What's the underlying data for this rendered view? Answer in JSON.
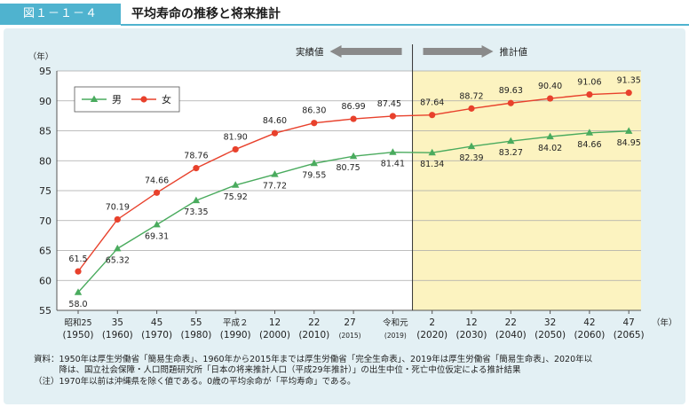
{
  "header": {
    "figure_label": "図１－１－４",
    "title": "平均寿命の推移と将来推計"
  },
  "chart_data": {
    "type": "line",
    "y_unit": "（年）",
    "x_unit": "（年）",
    "ylim": [
      55,
      95
    ],
    "yticks": [
      55,
      60,
      65,
      70,
      75,
      80,
      85,
      90,
      95
    ],
    "section_labels": {
      "actual": "実績値",
      "projected": "推計値"
    },
    "projection_start_index": 9,
    "projection_fill": "#fcf3c0",
    "x_ticks": [
      {
        "era": "昭和25",
        "year": "(1950)"
      },
      {
        "era": "35",
        "year": "(1960)"
      },
      {
        "era": "45",
        "year": "(1970)"
      },
      {
        "era": "55",
        "year": "(1980)"
      },
      {
        "era": "平成２",
        "year": "(1990)"
      },
      {
        "era": "12",
        "year": "(2000)"
      },
      {
        "era": "22",
        "year": "(2010)"
      },
      {
        "era": "27",
        "year": "(2015)"
      },
      {
        "era": "令和元",
        "year": "(2019)"
      },
      {
        "era": "2",
        "year": "(2020)"
      },
      {
        "era": "12",
        "year": "(2030)"
      },
      {
        "era": "22",
        "year": "(2040)"
      },
      {
        "era": "32",
        "year": "(2050)"
      },
      {
        "era": "42",
        "year": "(2060)"
      },
      {
        "era": "47",
        "year": "(2065)"
      }
    ],
    "x": [
      1950,
      1960,
      1970,
      1980,
      1990,
      2000,
      2010,
      2015,
      2019,
      2020,
      2030,
      2040,
      2050,
      2060,
      2065
    ],
    "series": [
      {
        "name": "男",
        "color": "#4aab5e",
        "marker": "triangle",
        "values": [
          58.0,
          65.32,
          69.31,
          73.35,
          75.92,
          77.72,
          79.55,
          80.75,
          81.41,
          81.34,
          82.39,
          83.27,
          84.02,
          84.66,
          84.95
        ],
        "labels": [
          "58.0",
          "65.32",
          "69.31",
          "73.35",
          "75.92",
          "77.72",
          "79.55",
          "80.75",
          "81.41",
          "81.34",
          "82.39",
          "83.27",
          "84.02",
          "84.66",
          "84.95"
        ]
      },
      {
        "name": "女",
        "color": "#e8412c",
        "marker": "circle",
        "values": [
          61.5,
          70.19,
          74.66,
          78.76,
          81.9,
          84.6,
          86.3,
          86.99,
          87.45,
          87.64,
          88.72,
          89.63,
          90.4,
          91.06,
          91.35
        ],
        "labels": [
          "61.5",
          "70.19",
          "74.66",
          "78.76",
          "81.90",
          "84.60",
          "86.30",
          "86.99",
          "87.45",
          "87.64",
          "88.72",
          "89.63",
          "90.40",
          "91.06",
          "91.35"
        ]
      }
    ],
    "legend_placement": "top-left",
    "grid": true
  },
  "footnotes": [
    "資料：1950年は厚生労働省「簡易生命表」、1960年から2015年までは厚生労働省「完全生命表」、2019年は厚生労働省「簡易生命表」、2020年以",
    "　　　降は、国立社会保障・人口問題研究所「日本の将来推計人口（平成29年推計）」の出生中位・死亡中位仮定による推計結果",
    "（注）1970年以前は沖縄県を除く値である。0歳の平均余命が「平均寿命」である。"
  ]
}
